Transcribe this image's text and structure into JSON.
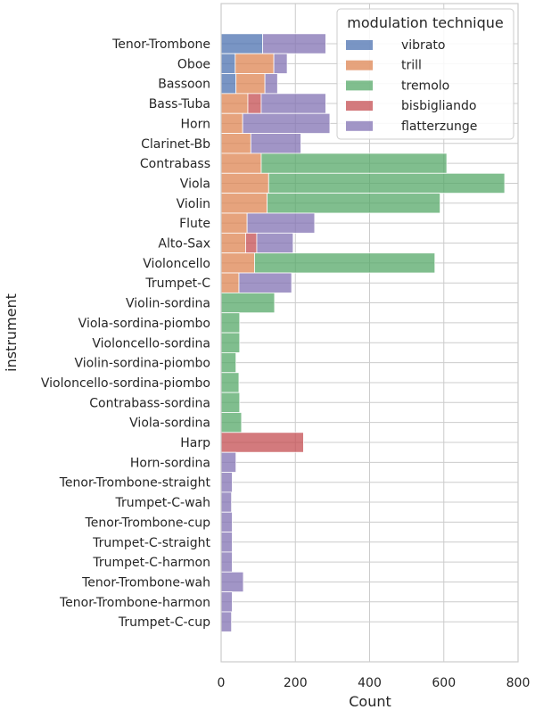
{
  "chart_data": {
    "type": "bar",
    "orientation": "horizontal",
    "stacked": true,
    "xlabel": "Count",
    "ylabel": "instrument",
    "xlim": [
      0,
      800
    ],
    "xticks": [
      0,
      200,
      400,
      600,
      800
    ],
    "grid": true,
    "legend_placement": "top-right",
    "legend_title": "modulation technique",
    "categories": [
      "Tenor-Trombone",
      "Oboe",
      "Bassoon",
      "Bass-Tuba",
      "Horn",
      "Clarinet-Bb",
      "Contrabass",
      "Viola",
      "Violin",
      "Flute",
      "Alto-Sax",
      "Violoncello",
      "Trumpet-C",
      "Violin-sordina",
      "Viola-sordina-piombo",
      "Violoncello-sordina",
      "Violin-sordina-piombo",
      "Violoncello-sordina-piombo",
      "Contrabass-sordina",
      "Viola-sordina",
      "Harp",
      "Horn-sordina",
      "Tenor-Trombone-straight",
      "Trumpet-C-wah",
      "Tenor-Trombone-cup",
      "Trumpet-C-straight",
      "Trumpet-C-harmon",
      "Tenor-Trombone-wah",
      "Tenor-Trombone-harmon",
      "Trumpet-C-cup"
    ],
    "series": [
      {
        "name": "vibrato",
        "color": "#4c72b0",
        "values": [
          112,
          38,
          40,
          0,
          0,
          0,
          0,
          0,
          0,
          0,
          0,
          0,
          0,
          0,
          0,
          0,
          0,
          0,
          0,
          0,
          0,
          0,
          0,
          0,
          0,
          0,
          0,
          0,
          0,
          0
        ]
      },
      {
        "name": "trill",
        "color": "#dd8452",
        "values": [
          0,
          104,
          78,
          72,
          58,
          80,
          108,
          128,
          124,
          70,
          66,
          90,
          48,
          0,
          0,
          0,
          0,
          0,
          0,
          0,
          0,
          0,
          0,
          0,
          0,
          0,
          0,
          0,
          0,
          0
        ]
      },
      {
        "name": "tremolo",
        "color": "#55a868",
        "values": [
          0,
          0,
          0,
          0,
          0,
          0,
          500,
          636,
          466,
          0,
          0,
          486,
          0,
          144,
          50,
          50,
          40,
          48,
          50,
          55,
          0,
          0,
          0,
          0,
          0,
          0,
          0,
          0,
          0,
          0
        ]
      },
      {
        "name": "bisbigliando",
        "color": "#c44e52",
        "values": [
          0,
          0,
          0,
          36,
          0,
          0,
          0,
          0,
          0,
          0,
          30,
          0,
          0,
          0,
          0,
          0,
          0,
          0,
          0,
          0,
          222,
          0,
          0,
          0,
          0,
          0,
          0,
          0,
          0,
          0
        ]
      },
      {
        "name": "flatterzunge",
        "color": "#8172b3",
        "values": [
          170,
          36,
          34,
          174,
          235,
          135,
          0,
          0,
          0,
          182,
          98,
          0,
          142,
          0,
          0,
          0,
          0,
          0,
          0,
          0,
          0,
          40,
          30,
          28,
          30,
          30,
          30,
          60,
          30,
          28
        ]
      }
    ]
  }
}
